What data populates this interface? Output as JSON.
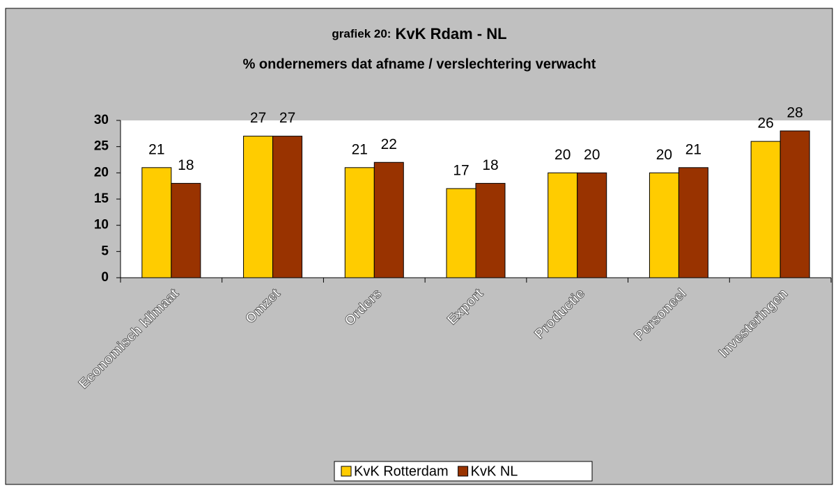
{
  "chart_data": {
    "type": "bar",
    "title_label": "grafiek 20:",
    "title": "KvK Rdam - NL",
    "subtitle": "% ondernemers dat afname / verslechtering verwacht",
    "categories": [
      "Economisch klimaat",
      "Omzet",
      "Orders",
      "Export",
      "Productie",
      "Personeel",
      "Investeringen"
    ],
    "series": [
      {
        "name": "KvK Rotterdam",
        "color": "#ffcc00",
        "values": [
          21,
          27,
          21,
          17,
          20,
          20,
          26
        ]
      },
      {
        "name": "KvK NL",
        "color": "#993300",
        "values": [
          18,
          27,
          22,
          18,
          20,
          21,
          28
        ]
      }
    ],
    "ylim": [
      0,
      30
    ],
    "yticks": [
      0,
      5,
      10,
      15,
      20,
      25,
      30
    ],
    "grid": false,
    "legend": "bottom"
  }
}
